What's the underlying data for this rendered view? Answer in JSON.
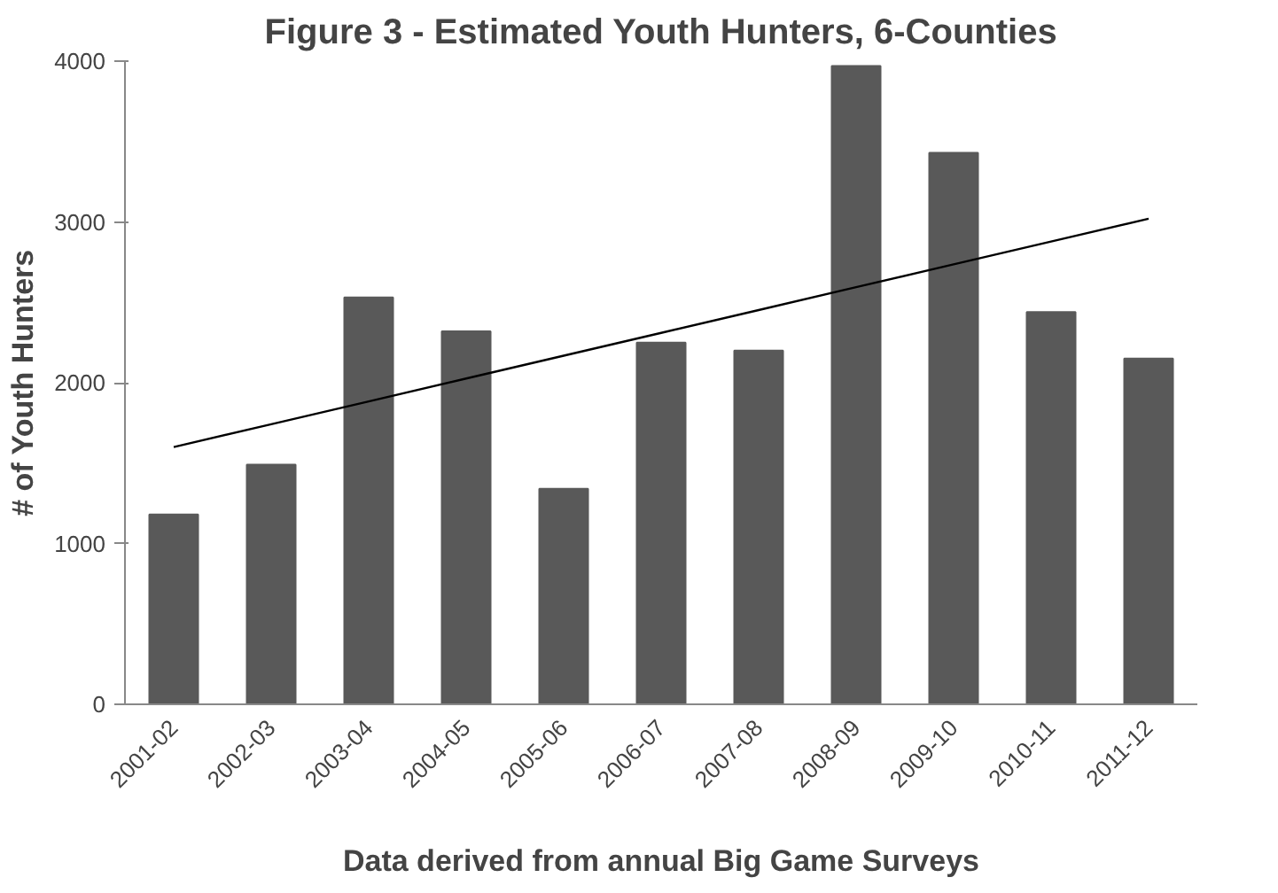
{
  "chart_data": {
    "type": "bar",
    "title": "Figure 3 - Estimated Youth Hunters, 6-Counties",
    "xlabel": "Data derived from annual Big Game Surveys",
    "ylabel": "# of Youth Hunters",
    "categories": [
      "2001-02",
      "2002-03",
      "2003-04",
      "2004-05",
      "2005-06",
      "2006-07",
      "2007-08",
      "2008-09",
      "2009-10",
      "2010-11",
      "2011-12"
    ],
    "series": [
      {
        "color": "#595959",
        "values": [
          1180,
          1490,
          2530,
          2320,
          1340,
          2250,
          2200,
          3970,
          3430,
          2440,
          2150
        ]
      },
      {
        "type": "line",
        "color": "#000000",
        "values": [
          1600,
          1742,
          1884,
          2026,
          2168,
          2310,
          2452,
          2594,
          2736,
          2878,
          3020
        ]
      }
    ],
    "ylim": [
      0,
      4000
    ],
    "yticks": [
      0,
      1000,
      2000,
      3000,
      4000
    ],
    "grid": false
  }
}
